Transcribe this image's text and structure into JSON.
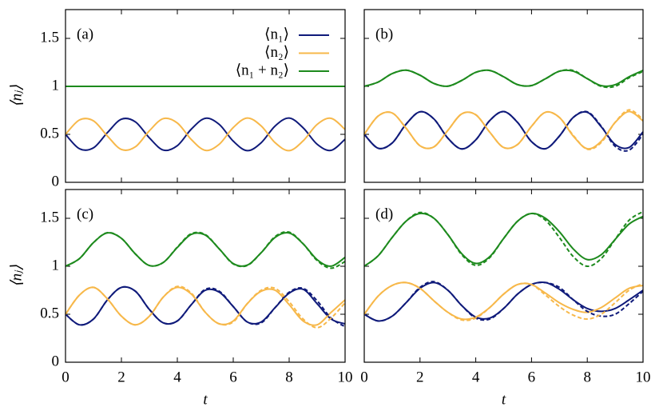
{
  "chart_data": [
    {
      "type": "line",
      "panel_label": "(a)",
      "y_label": "⟨nⱼ⟩",
      "show_xtick_labels": false,
      "show_ytick_labels": true,
      "legend": "upper right",
      "xlim": [
        0,
        10
      ],
      "ylim": [
        0,
        1.8
      ],
      "xticks": [
        0,
        2,
        4,
        6,
        8,
        10
      ],
      "yticks": [
        0,
        0.5,
        1,
        1.5
      ],
      "x": [
        0,
        0.5,
        1,
        1.5,
        2,
        2.5,
        3,
        3.5,
        4,
        4.5,
        5,
        5.5,
        6,
        6.5,
        7,
        7.5,
        8,
        8.5,
        9,
        9.5,
        10
      ],
      "series": [
        {
          "name": "⟨n₁⟩",
          "color": "#0f1a7a",
          "dashed": false,
          "values": [
            0.5,
            0.35,
            0.359,
            0.518,
            0.658,
            0.63,
            0.463,
            0.336,
            0.382,
            0.554,
            0.667,
            0.603,
            0.429,
            0.33,
            0.413,
            0.588,
            0.67,
            0.568,
            0.397,
            0.333,
            0.449
          ]
        },
        {
          "name": "⟨n₂⟩",
          "color": "#f7b84a",
          "dashed": false,
          "values": [
            0.5,
            0.65,
            0.641,
            0.482,
            0.342,
            0.37,
            0.537,
            0.664,
            0.618,
            0.446,
            0.333,
            0.397,
            0.571,
            0.67,
            0.587,
            0.412,
            0.33,
            0.432,
            0.603,
            0.667,
            0.551
          ]
        },
        {
          "name": "⟨n₁ + n₂⟩",
          "color": "#1d8a1d",
          "dashed": false,
          "values": [
            1,
            1,
            1,
            1,
            1,
            1,
            1,
            1,
            1,
            1,
            1,
            1,
            1,
            1,
            1,
            1,
            1,
            1,
            1,
            1,
            1
          ]
        }
      ]
    },
    {
      "type": "line",
      "panel_label": "(b)",
      "show_xtick_labels": false,
      "show_ytick_labels": false,
      "xlim": [
        0,
        10
      ],
      "ylim": [
        0,
        1.8
      ],
      "xticks": [
        0,
        2,
        4,
        6,
        8,
        10
      ],
      "yticks": [
        0,
        0.5,
        1,
        1.5
      ],
      "x": [
        0,
        0.5,
        1,
        1.5,
        2,
        2.5,
        3,
        3.5,
        4,
        4.5,
        5,
        5.5,
        6,
        6.5,
        7,
        7.5,
        8,
        8.5,
        9,
        9.5,
        10
      ],
      "series": [
        {
          "color": "#0f1a7a",
          "dashed": false,
          "values": [
            0.5,
            0.355,
            0.409,
            0.606,
            0.735,
            0.66,
            0.46,
            0.348,
            0.442,
            0.643,
            0.737,
            0.624,
            0.424,
            0.35,
            0.482,
            0.677,
            0.73,
            0.579,
            0.394,
            0.363,
            0.526
          ]
        },
        {
          "color": "#f7b84a",
          "dashed": false,
          "values": [
            0.5,
            0.691,
            0.723,
            0.564,
            0.381,
            0.37,
            0.542,
            0.714,
            0.704,
            0.523,
            0.363,
            0.394,
            0.584,
            0.73,
            0.676,
            0.481,
            0.35,
            0.427,
            0.624,
            0.737,
            0.64
          ]
        },
        {
          "color": "#1d8a1d",
          "dashed": false,
          "values": [
            1,
            1.045,
            1.133,
            1.169,
            1.116,
            1.03,
            1.002,
            1.062,
            1.146,
            1.166,
            1.1,
            1.018,
            1.008,
            1.079,
            1.158,
            1.158,
            1.08,
            1.007,
            1.017,
            1.1,
            1.166
          ]
        },
        {
          "color": "#0f1a7a",
          "dashed": true,
          "values": [
            0.5,
            0.355,
            0.409,
            0.606,
            0.735,
            0.66,
            0.46,
            0.348,
            0.442,
            0.643,
            0.737,
            0.624,
            0.424,
            0.35,
            0.482,
            0.677,
            0.735,
            0.585,
            0.375,
            0.335,
            0.5
          ]
        },
        {
          "color": "#f7b84a",
          "dashed": true,
          "values": [
            0.5,
            0.691,
            0.723,
            0.564,
            0.381,
            0.37,
            0.542,
            0.714,
            0.704,
            0.523,
            0.363,
            0.394,
            0.584,
            0.73,
            0.676,
            0.488,
            0.345,
            0.415,
            0.625,
            0.755,
            0.655
          ]
        },
        {
          "color": "#1d8a1d",
          "dashed": true,
          "values": [
            1,
            1.045,
            1.133,
            1.169,
            1.116,
            1.03,
            1.002,
            1.062,
            1.146,
            1.166,
            1.1,
            1.018,
            1.008,
            1.079,
            1.158,
            1.165,
            1.08,
            1,
            1,
            1.09,
            1.155
          ]
        }
      ]
    },
    {
      "type": "line",
      "panel_label": "(c)",
      "y_label": "⟨nⱼ⟩",
      "x_label": "t",
      "show_xtick_labels": true,
      "show_ytick_labels": true,
      "xlim": [
        0,
        10
      ],
      "ylim": [
        0,
        1.8
      ],
      "xticks": [
        0,
        2,
        4,
        6,
        8,
        10
      ],
      "yticks": [
        0,
        0.5,
        1,
        1.5
      ],
      "x": [
        0,
        0.5,
        1,
        1.5,
        2,
        2.5,
        3,
        3.5,
        4,
        4.5,
        5,
        5.5,
        6,
        6.5,
        7,
        7.5,
        8,
        8.5,
        9,
        9.5,
        10
      ],
      "series": [
        {
          "color": "#0f1a7a",
          "dashed": false,
          "values": [
            0.5,
            0.39,
            0.45,
            0.65,
            0.78,
            0.74,
            0.55,
            0.41,
            0.43,
            0.6,
            0.75,
            0.73,
            0.58,
            0.42,
            0.42,
            0.57,
            0.72,
            0.76,
            0.61,
            0.45,
            0.4
          ]
        },
        {
          "color": "#f7b84a",
          "dashed": false,
          "values": [
            0.5,
            0.7,
            0.78,
            0.66,
            0.48,
            0.39,
            0.48,
            0.68,
            0.78,
            0.71,
            0.52,
            0.4,
            0.43,
            0.61,
            0.74,
            0.75,
            0.6,
            0.43,
            0.39,
            0.52,
            0.65
          ]
        },
        {
          "color": "#1d8a1d",
          "dashed": false,
          "values": [
            1,
            1.08,
            1.247,
            1.348,
            1.291,
            1.128,
            1.008,
            1.04,
            1.196,
            1.333,
            1.325,
            1.181,
            1.028,
            1.012,
            1.142,
            1.302,
            1.347,
            1.234,
            1.069,
            1.001,
            1.093
          ]
        },
        {
          "color": "#0f1a7a",
          "dashed": true,
          "values": [
            0.5,
            0.39,
            0.45,
            0.65,
            0.78,
            0.74,
            0.55,
            0.41,
            0.43,
            0.6,
            0.76,
            0.74,
            0.58,
            0.42,
            0.41,
            0.57,
            0.73,
            0.77,
            0.64,
            0.46,
            0.37
          ]
        },
        {
          "color": "#f7b84a",
          "dashed": true,
          "values": [
            0.5,
            0.7,
            0.78,
            0.66,
            0.48,
            0.39,
            0.48,
            0.68,
            0.79,
            0.72,
            0.52,
            0.4,
            0.42,
            0.61,
            0.75,
            0.77,
            0.63,
            0.45,
            0.36,
            0.46,
            0.62
          ]
        },
        {
          "color": "#1d8a1d",
          "dashed": true,
          "values": [
            1,
            1.08,
            1.247,
            1.35,
            1.291,
            1.128,
            1.008,
            1.04,
            1.2,
            1.34,
            1.33,
            1.181,
            1.025,
            1.008,
            1.142,
            1.31,
            1.355,
            1.234,
            1.06,
            0.98,
            1.05
          ]
        }
      ]
    },
    {
      "type": "line",
      "panel_label": "(d)",
      "x_label": "t",
      "show_xtick_labels": true,
      "show_ytick_labels": false,
      "xlim": [
        0,
        10
      ],
      "ylim": [
        0,
        1.8
      ],
      "xticks": [
        0,
        2,
        4,
        6,
        8,
        10
      ],
      "yticks": [
        0,
        0.5,
        1,
        1.5
      ],
      "x": [
        0,
        0.5,
        1,
        1.5,
        2,
        2.5,
        3,
        3.5,
        4,
        4.5,
        5,
        5.5,
        6,
        6.5,
        7,
        7.5,
        8,
        8.5,
        9,
        9.5,
        10
      ],
      "series": [
        {
          "color": "#0f1a7a",
          "dashed": false,
          "values": [
            0.5,
            0.43,
            0.48,
            0.62,
            0.77,
            0.83,
            0.75,
            0.59,
            0.47,
            0.46,
            0.56,
            0.71,
            0.81,
            0.83,
            0.76,
            0.65,
            0.56,
            0.53,
            0.56,
            0.65,
            0.75
          ]
        },
        {
          "color": "#f7b84a",
          "dashed": false,
          "values": [
            0.5,
            0.69,
            0.8,
            0.83,
            0.77,
            0.64,
            0.52,
            0.45,
            0.47,
            0.57,
            0.71,
            0.81,
            0.81,
            0.72,
            0.62,
            0.55,
            0.52,
            0.57,
            0.67,
            0.77,
            0.8
          ]
        },
        {
          "color": "#1d8a1d",
          "dashed": false,
          "values": [
            1,
            1.11,
            1.3,
            1.47,
            1.55,
            1.5,
            1.33,
            1.13,
            1.03,
            1.1,
            1.29,
            1.47,
            1.55,
            1.5,
            1.36,
            1.18,
            1.07,
            1.12,
            1.28,
            1.44,
            1.52
          ]
        },
        {
          "color": "#0f1a7a",
          "dashed": true,
          "values": [
            0.5,
            0.43,
            0.48,
            0.62,
            0.78,
            0.84,
            0.75,
            0.59,
            0.46,
            0.45,
            0.56,
            0.71,
            0.81,
            0.83,
            0.78,
            0.65,
            0.53,
            0.48,
            0.5,
            0.61,
            0.74
          ]
        },
        {
          "color": "#f7b84a",
          "dashed": true,
          "values": [
            0.5,
            0.69,
            0.8,
            0.83,
            0.77,
            0.64,
            0.52,
            0.44,
            0.46,
            0.57,
            0.71,
            0.81,
            0.81,
            0.7,
            0.58,
            0.49,
            0.45,
            0.5,
            0.62,
            0.75,
            0.82
          ]
        },
        {
          "color": "#1d8a1d",
          "dashed": true,
          "values": [
            1,
            1.11,
            1.3,
            1.47,
            1.56,
            1.5,
            1.33,
            1.12,
            1.01,
            1.09,
            1.29,
            1.47,
            1.55,
            1.48,
            1.3,
            1.1,
            1,
            1.08,
            1.28,
            1.48,
            1.57
          ]
        }
      ]
    }
  ]
}
